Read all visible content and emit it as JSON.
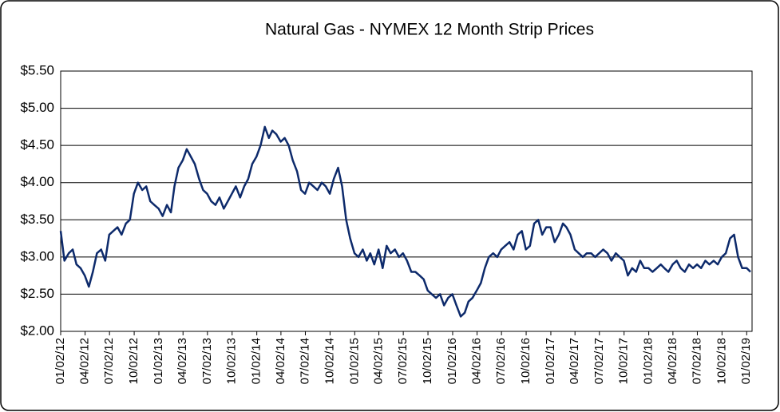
{
  "chart_data": {
    "type": "line",
    "title": "Natural Gas - NYMEX 12 Month Strip Prices",
    "x": [
      "01/02/12",
      "01/16/12",
      "02/01/12",
      "02/16/12",
      "03/01/12",
      "03/16/12",
      "04/01/12",
      "04/16/12",
      "05/01/12",
      "05/16/12",
      "06/01/12",
      "06/16/12",
      "07/01/12",
      "07/16/12",
      "08/01/12",
      "08/16/12",
      "09/01/12",
      "09/16/12",
      "10/01/12",
      "10/16/12",
      "11/01/12",
      "11/16/12",
      "12/01/12",
      "12/16/12",
      "01/01/13",
      "01/16/13",
      "02/01/13",
      "02/16/13",
      "03/01/13",
      "03/16/13",
      "04/01/13",
      "04/16/13",
      "05/01/13",
      "05/16/13",
      "06/01/13",
      "06/16/13",
      "07/01/13",
      "07/16/13",
      "08/01/13",
      "08/16/13",
      "09/01/13",
      "09/16/13",
      "10/01/13",
      "10/16/13",
      "11/01/13",
      "11/16/13",
      "12/01/13",
      "12/16/13",
      "01/01/14",
      "01/16/14",
      "02/01/14",
      "02/16/14",
      "03/01/14",
      "03/16/14",
      "04/01/14",
      "04/16/14",
      "05/01/14",
      "05/16/14",
      "06/01/14",
      "06/16/14",
      "07/01/14",
      "07/16/14",
      "08/01/14",
      "08/16/14",
      "09/01/14",
      "09/16/14",
      "10/01/14",
      "10/16/14",
      "11/01/14",
      "11/16/14",
      "12/01/14",
      "12/16/14",
      "01/01/15",
      "01/16/15",
      "02/01/15",
      "02/16/15",
      "03/01/15",
      "03/16/15",
      "04/01/15",
      "04/16/15",
      "05/01/15",
      "05/16/15",
      "06/01/15",
      "06/16/15",
      "07/01/15",
      "07/16/15",
      "08/01/15",
      "08/16/15",
      "09/01/15",
      "09/16/15",
      "10/01/15",
      "10/16/15",
      "11/01/15",
      "11/16/15",
      "12/01/15",
      "12/16/15",
      "01/01/16",
      "01/16/16",
      "02/01/16",
      "02/16/16",
      "03/01/16",
      "03/16/16",
      "04/01/16",
      "04/16/16",
      "05/01/16",
      "05/16/16",
      "06/01/16",
      "06/16/16",
      "07/01/16",
      "07/16/16",
      "08/01/16",
      "08/16/16",
      "09/01/16",
      "09/16/16",
      "10/01/16",
      "10/16/16",
      "11/01/16",
      "11/16/16",
      "12/01/16",
      "12/16/16",
      "01/01/17",
      "01/16/17",
      "02/01/17",
      "02/16/17",
      "03/01/17",
      "03/16/17",
      "04/01/17",
      "04/16/17",
      "05/01/17",
      "05/16/17",
      "06/01/17",
      "06/16/17",
      "07/01/17",
      "07/16/17",
      "08/01/17",
      "08/16/17",
      "09/01/17",
      "09/16/17",
      "10/01/17",
      "10/16/17",
      "11/01/17",
      "11/16/17",
      "12/01/17",
      "12/16/17",
      "01/01/18",
      "01/16/18",
      "02/01/18",
      "02/16/18",
      "03/01/18",
      "03/16/18",
      "04/01/18",
      "04/16/18",
      "05/01/18",
      "05/16/18",
      "06/01/18",
      "06/16/18",
      "07/01/18",
      "07/16/18",
      "08/01/18",
      "08/16/18",
      "09/01/18",
      "09/16/18",
      "10/01/18",
      "10/16/18",
      "11/01/18",
      "11/16/18",
      "12/01/18",
      "12/16/18",
      "01/02/19",
      "01/16/19"
    ],
    "series": [
      {
        "color": "#0d2a6b",
        "values": [
          3.35,
          2.95,
          3.05,
          3.1,
          2.9,
          2.85,
          2.75,
          2.6,
          2.8,
          3.05,
          3.1,
          2.95,
          3.3,
          3.35,
          3.4,
          3.3,
          3.45,
          3.5,
          3.85,
          4.0,
          3.9,
          3.95,
          3.75,
          3.7,
          3.65,
          3.55,
          3.7,
          3.6,
          3.95,
          4.2,
          4.3,
          4.45,
          4.35,
          4.25,
          4.05,
          3.9,
          3.85,
          3.75,
          3.7,
          3.8,
          3.65,
          3.75,
          3.85,
          3.95,
          3.8,
          3.95,
          4.05,
          4.25,
          4.35,
          4.5,
          4.75,
          4.6,
          4.7,
          4.65,
          4.55,
          4.6,
          4.5,
          4.3,
          4.15,
          3.9,
          3.85,
          4.0,
          3.95,
          3.9,
          4.0,
          3.95,
          3.85,
          4.05,
          4.2,
          3.95,
          3.5,
          3.25,
          3.05,
          3.0,
          3.1,
          2.95,
          3.05,
          2.9,
          3.1,
          2.85,
          3.15,
          3.05,
          3.1,
          3.0,
          3.05,
          2.95,
          2.8,
          2.8,
          2.75,
          2.7,
          2.55,
          2.5,
          2.45,
          2.5,
          2.35,
          2.45,
          2.5,
          2.35,
          2.2,
          2.25,
          2.4,
          2.45,
          2.55,
          2.65,
          2.85,
          3.0,
          3.05,
          3.0,
          3.1,
          3.15,
          3.2,
          3.1,
          3.3,
          3.35,
          3.1,
          3.15,
          3.45,
          3.5,
          3.3,
          3.4,
          3.4,
          3.2,
          3.3,
          3.45,
          3.4,
          3.3,
          3.1,
          3.05,
          3.0,
          3.05,
          3.05,
          3.0,
          3.05,
          3.1,
          3.05,
          2.95,
          3.05,
          3.0,
          2.95,
          2.75,
          2.85,
          2.8,
          2.95,
          2.85,
          2.85,
          2.8,
          2.85,
          2.9,
          2.85,
          2.8,
          2.9,
          2.95,
          2.85,
          2.8,
          2.9,
          2.85,
          2.9,
          2.85,
          2.95,
          2.9,
          2.95,
          2.9,
          3.0,
          3.05,
          3.25,
          3.3,
          3.0,
          2.85,
          2.85,
          2.8
        ]
      }
    ],
    "xlim": [
      "01/02/12",
      "01/22/19"
    ],
    "xticks": [
      "01/02/12",
      "04/02/12",
      "07/02/12",
      "10/02/12",
      "01/02/13",
      "04/02/13",
      "07/02/13",
      "10/02/13",
      "01/02/14",
      "04/02/14",
      "07/02/14",
      "10/02/14",
      "01/02/15",
      "04/02/15",
      "07/02/15",
      "10/02/15",
      "01/02/16",
      "04/02/16",
      "07/02/16",
      "10/02/16",
      "01/02/17",
      "04/02/17",
      "07/02/17",
      "10/02/17",
      "01/02/18",
      "04/02/18",
      "07/02/18",
      "10/02/18",
      "01/02/19"
    ],
    "ylim": [
      2,
      5.5
    ],
    "yticks": [
      {
        "value": 2,
        "label": "$2.00"
      },
      {
        "value": 2.5,
        "label": "$2.50"
      },
      {
        "value": 3,
        "label": "$3.00"
      },
      {
        "value": 3.5,
        "label": "$3.50"
      },
      {
        "value": 4,
        "label": "$4.00"
      },
      {
        "value": 4.5,
        "label": "$4.50"
      },
      {
        "value": 5,
        "label": "$5.00"
      },
      {
        "value": 5.5,
        "label": "$5.50"
      }
    ],
    "grid": true
  }
}
